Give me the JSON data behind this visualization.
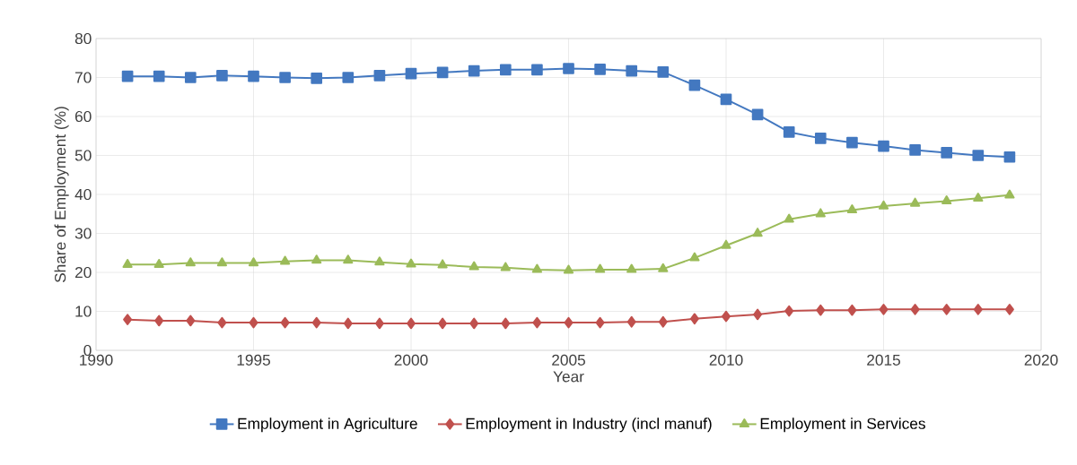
{
  "chart_data": {
    "type": "line",
    "xlabel": "Year",
    "ylabel": "Share of Employment  (%)",
    "x": [
      1991,
      1992,
      1993,
      1994,
      1995,
      1996,
      1997,
      1998,
      1999,
      2000,
      2001,
      2002,
      2003,
      2004,
      2005,
      2006,
      2007,
      2008,
      2009,
      2010,
      2011,
      2012,
      2013,
      2014,
      2015,
      2016,
      2017,
      2018,
      2019
    ],
    "series": [
      {
        "name": "Employment in Agriculture",
        "color": "#4378c0",
        "marker": "square",
        "values": [
          70.3,
          70.3,
          70.0,
          70.5,
          70.3,
          70.0,
          69.8,
          70.0,
          70.5,
          71.0,
          71.3,
          71.7,
          72.0,
          72.0,
          72.3,
          72.1,
          71.7,
          71.4,
          68.0,
          64.4,
          60.5,
          56.0,
          54.4,
          53.3,
          52.4,
          51.4,
          50.7,
          50.0,
          49.6
        ]
      },
      {
        "name": "Employment in Industry (incl manuf)",
        "color": "#c0504d",
        "marker": "diamond",
        "values": [
          7.9,
          7.6,
          7.6,
          7.1,
          7.1,
          7.1,
          7.1,
          6.9,
          6.9,
          6.9,
          6.9,
          6.9,
          6.9,
          7.1,
          7.1,
          7.1,
          7.3,
          7.3,
          8.1,
          8.7,
          9.2,
          10.1,
          10.3,
          10.3,
          10.5,
          10.5,
          10.5,
          10.5,
          10.5
        ]
      },
      {
        "name": "Employment in Services",
        "color": "#9bbb59",
        "marker": "triangle",
        "values": [
          22.0,
          22.0,
          22.4,
          22.4,
          22.4,
          22.8,
          23.1,
          23.1,
          22.6,
          22.1,
          21.9,
          21.4,
          21.2,
          20.7,
          20.5,
          20.7,
          20.7,
          20.9,
          23.7,
          26.9,
          30.0,
          33.6,
          35.0,
          36.0,
          37.0,
          37.7,
          38.3,
          39.0,
          39.8
        ]
      }
    ],
    "xlim": [
      1990,
      2020
    ],
    "xticks": [
      1990,
      1995,
      2000,
      2005,
      2010,
      2015,
      2020
    ],
    "ylim": [
      0,
      80
    ],
    "yticks": [
      0,
      10,
      20,
      30,
      40,
      50,
      60,
      70,
      80
    ],
    "grid": true,
    "legend": "bottom",
    "line_style": "solid"
  }
}
